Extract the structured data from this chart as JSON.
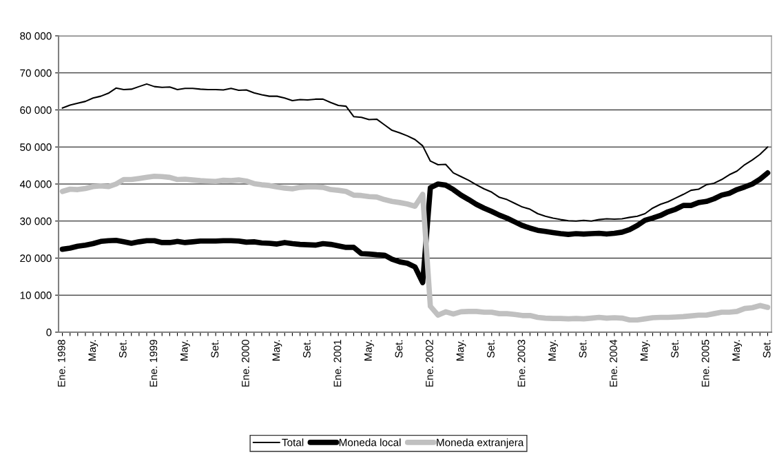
{
  "chart_data": {
    "type": "line",
    "categories": [
      "Ene. 1998",
      null,
      null,
      null,
      "May.",
      null,
      null,
      null,
      "Set.",
      null,
      null,
      null,
      "Ene. 1999",
      null,
      null,
      null,
      "May.",
      null,
      null,
      null,
      "Set.",
      null,
      null,
      null,
      "Ene. 2000",
      null,
      null,
      null,
      "May.",
      null,
      null,
      null,
      "Set.",
      null,
      null,
      null,
      "Ene. 2001",
      null,
      null,
      null,
      "May.",
      null,
      null,
      null,
      "Set.",
      null,
      null,
      null,
      "Ene. 2002",
      null,
      null,
      null,
      "May.",
      null,
      null,
      null,
      "Set.",
      null,
      null,
      null,
      "Ene. 2003",
      null,
      null,
      null,
      "May.",
      null,
      null,
      null,
      "Set.",
      null,
      null,
      null,
      "Ene. 2004",
      null,
      null,
      null,
      "May.",
      null,
      null,
      null,
      "Set.",
      null,
      null,
      null,
      "Ene. 2005",
      null,
      null,
      null,
      "May.",
      null,
      null,
      null,
      "Set."
    ],
    "series": [
      {
        "name": "Total",
        "color": "#000000",
        "values": [
          60500,
          61300,
          61800,
          62300,
          63200,
          63700,
          64500,
          65900,
          65500,
          65600,
          66300,
          67000,
          66300,
          66100,
          66200,
          65500,
          65800,
          65800,
          65600,
          65500,
          65500,
          65400,
          65800,
          65300,
          65400,
          64600,
          64100,
          63700,
          63700,
          63200,
          62500,
          62800,
          62700,
          62900,
          62900,
          62000,
          61200,
          61000,
          58200,
          58000,
          57400,
          57500,
          56000,
          54500,
          53800,
          53000,
          52000,
          50300,
          46200,
          45200,
          45300,
          43000,
          42000,
          41000,
          39800,
          38700,
          37800,
          36400,
          35800,
          34800,
          33800,
          33200,
          32000,
          31300,
          30800,
          30400,
          30100,
          30000,
          30200,
          30000,
          30400,
          30600,
          30500,
          30600,
          31000,
          31300,
          32000,
          33500,
          34500,
          35200,
          36200,
          37200,
          38300,
          38600,
          39800,
          40200,
          41200,
          42500,
          43500,
          45200,
          46500,
          48000,
          50000
        ]
      },
      {
        "name": "Moneda local",
        "color": "#000000",
        "values": [
          22400,
          22700,
          23200,
          23500,
          23900,
          24500,
          24700,
          24800,
          24400,
          24000,
          24400,
          24700,
          24700,
          24200,
          24200,
          24500,
          24200,
          24400,
          24600,
          24600,
          24600,
          24700,
          24700,
          24600,
          24300,
          24400,
          24100,
          24000,
          23800,
          24200,
          23900,
          23700,
          23600,
          23500,
          23900,
          23700,
          23300,
          22900,
          22900,
          21200,
          21100,
          20900,
          20800,
          19700,
          19000,
          18600,
          17600,
          13400,
          39000,
          40000,
          39700,
          38500,
          37000,
          35800,
          34500,
          33500,
          32600,
          31600,
          30800,
          29800,
          28800,
          28100,
          27500,
          27200,
          26900,
          26600,
          26400,
          26600,
          26500,
          26600,
          26700,
          26500,
          26700,
          27000,
          27700,
          28800,
          30200,
          30800,
          31500,
          32500,
          33200,
          34200,
          34200,
          35000,
          35300,
          36000,
          37000,
          37500,
          38500,
          39200,
          40000,
          41300,
          43000
        ]
      },
      {
        "name": "Moneda extranjera",
        "color": "#c0c0c0",
        "values": [
          38000,
          38600,
          38500,
          38800,
          39300,
          39500,
          39300,
          40000,
          41200,
          41200,
          41500,
          41800,
          42100,
          42000,
          41800,
          41200,
          41300,
          41100,
          40900,
          40800,
          40700,
          41000,
          40900,
          41100,
          40800,
          40100,
          39800,
          39600,
          39200,
          38900,
          38700,
          39100,
          39200,
          39200,
          39100,
          38500,
          38300,
          38000,
          37000,
          36900,
          36600,
          36500,
          35800,
          35300,
          35000,
          34600,
          34000,
          37200,
          7000,
          4600,
          5500,
          4900,
          5500,
          5600,
          5600,
          5400,
          5400,
          5000,
          5000,
          4800,
          4500,
          4500,
          4000,
          3800,
          3700,
          3700,
          3600,
          3700,
          3600,
          3800,
          4000,
          3800,
          3900,
          3800,
          3300,
          3300,
          3600,
          3900,
          4000,
          4000,
          4100,
          4200,
          4400,
          4600,
          4600,
          5000,
          5400,
          5400,
          5600,
          6400,
          6600,
          7200,
          6700
        ]
      }
    ],
    "ylim": [
      0,
      80000
    ],
    "yticks": [
      0,
      {
        "value": 10000,
        "label": "10 000"
      },
      {
        "value": 20000,
        "label": "20 000"
      },
      {
        "value": 30000,
        "label": "30 000"
      },
      {
        "value": 40000,
        "label": "40 000"
      },
      {
        "value": 50000,
        "label": "50 000"
      },
      {
        "value": 60000,
        "label": "60 000"
      },
      {
        "value": 70000,
        "label": "70 000"
      },
      {
        "value": 80000,
        "label": "80 000"
      }
    ],
    "grid": "y",
    "legend": "bottom",
    "marker": "none",
    "line_style": "solid"
  }
}
